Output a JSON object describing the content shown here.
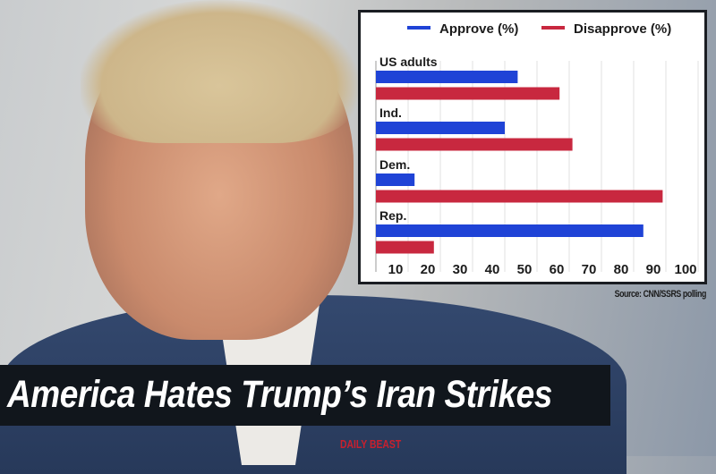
{
  "chart_data": {
    "type": "bar",
    "orientation": "horizontal",
    "categories": [
      "US adults",
      "Ind.",
      "Dem.",
      "Rep."
    ],
    "series": [
      {
        "name": "Approve (%)",
        "color": "#1f43d6",
        "values": [
          44,
          40,
          12,
          83
        ]
      },
      {
        "name": "Disapprove (%)",
        "color": "#c8283f",
        "values": [
          57,
          61,
          89,
          18
        ]
      }
    ],
    "xticks": [
      10,
      20,
      30,
      40,
      50,
      60,
      70,
      80,
      90,
      100
    ],
    "xlim": [
      0,
      100
    ],
    "grid": true,
    "legend": "top"
  },
  "source": "Source: CNN/SSRS polling",
  "headline": "America Hates Trump’s Iran Strikes",
  "brand": "DAILY BEAST"
}
